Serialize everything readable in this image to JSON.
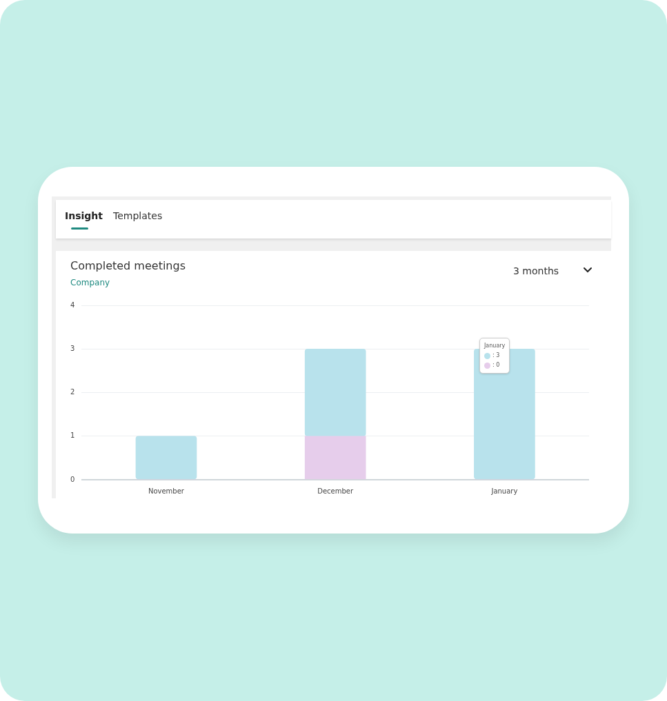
{
  "chart_data": {
    "type": "bar",
    "title": "Completed meetings",
    "subtitle": "Company",
    "categories": [
      "November",
      "December",
      "January"
    ],
    "series": [
      {
        "color": "#e6cdeb",
        "values": [
          0,
          1,
          0
        ]
      },
      {
        "color": "#b8e2ec",
        "values": [
          1,
          2,
          3
        ]
      }
    ],
    "stacked": true,
    "ylim": [
      0,
      4
    ],
    "yticks": [
      0,
      1,
      2,
      3,
      4
    ],
    "grid": "y",
    "annotations": [
      "Insight",
      "Templates",
      "3 months",
      "January",
      ": 3",
      ": 0"
    ]
  }
}
